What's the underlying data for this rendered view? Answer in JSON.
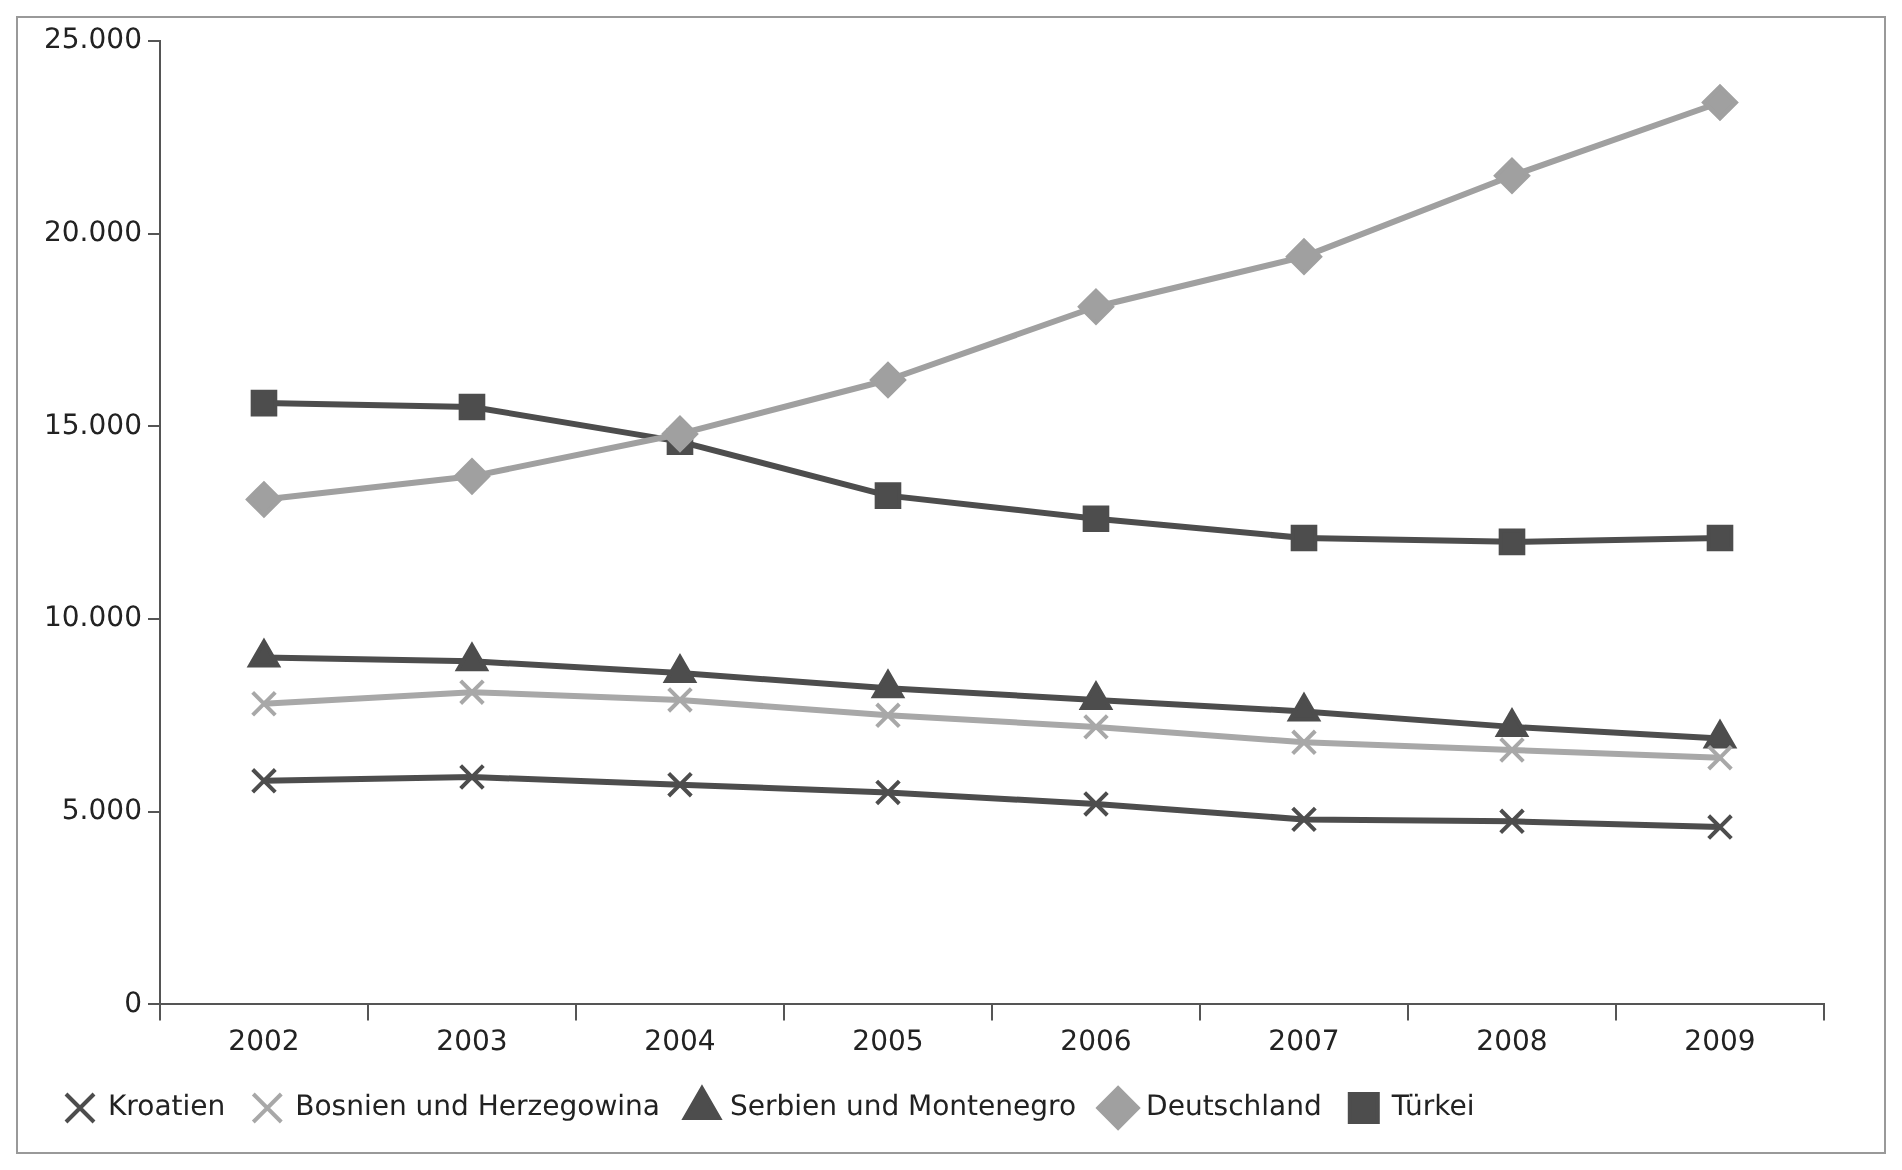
{
  "chart_data": {
    "type": "line",
    "categories": [
      "2002",
      "2003",
      "2004",
      "2005",
      "2006",
      "2007",
      "2008",
      "2009"
    ],
    "series": [
      {
        "name": "Türkei",
        "color": "#4d4d4d",
        "marker": "square",
        "values": [
          15600,
          15500,
          14600,
          13200,
          12600,
          12100,
          12000,
          12100
        ]
      },
      {
        "name": "Deutschland",
        "color": "#a0a0a0",
        "marker": "diamond",
        "values": [
          13100,
          13700,
          14800,
          16200,
          18100,
          19400,
          21500,
          23400
        ]
      },
      {
        "name": "Serbien und Montenegro",
        "color": "#4d4d4d",
        "marker": "triangle",
        "values": [
          9000,
          8900,
          8600,
          8200,
          7900,
          7600,
          7200,
          6900
        ]
      },
      {
        "name": "Bosnien und Herzegowina",
        "color": "#a8a8a8",
        "marker": "cross",
        "values": [
          7800,
          8100,
          7900,
          7500,
          7200,
          6800,
          6600,
          6400
        ]
      },
      {
        "name": "Kroatien",
        "color": "#4d4d4d",
        "marker": "cross",
        "values": [
          5800,
          5900,
          5700,
          5500,
          5200,
          4800,
          4750,
          4600
        ]
      }
    ],
    "ylim": [
      0,
      25000
    ],
    "yticks": [
      0,
      {
        "value": 5000,
        "label": "5.000"
      },
      {
        "value": 10000,
        "label": "10.000"
      },
      {
        "value": 15000,
        "label": "15.000"
      },
      {
        "value": 20000,
        "label": "20.000"
      },
      {
        "value": 25000,
        "label": "25.000"
      }
    ],
    "grid": false,
    "legend": "bottom",
    "line_style": "solid"
  }
}
